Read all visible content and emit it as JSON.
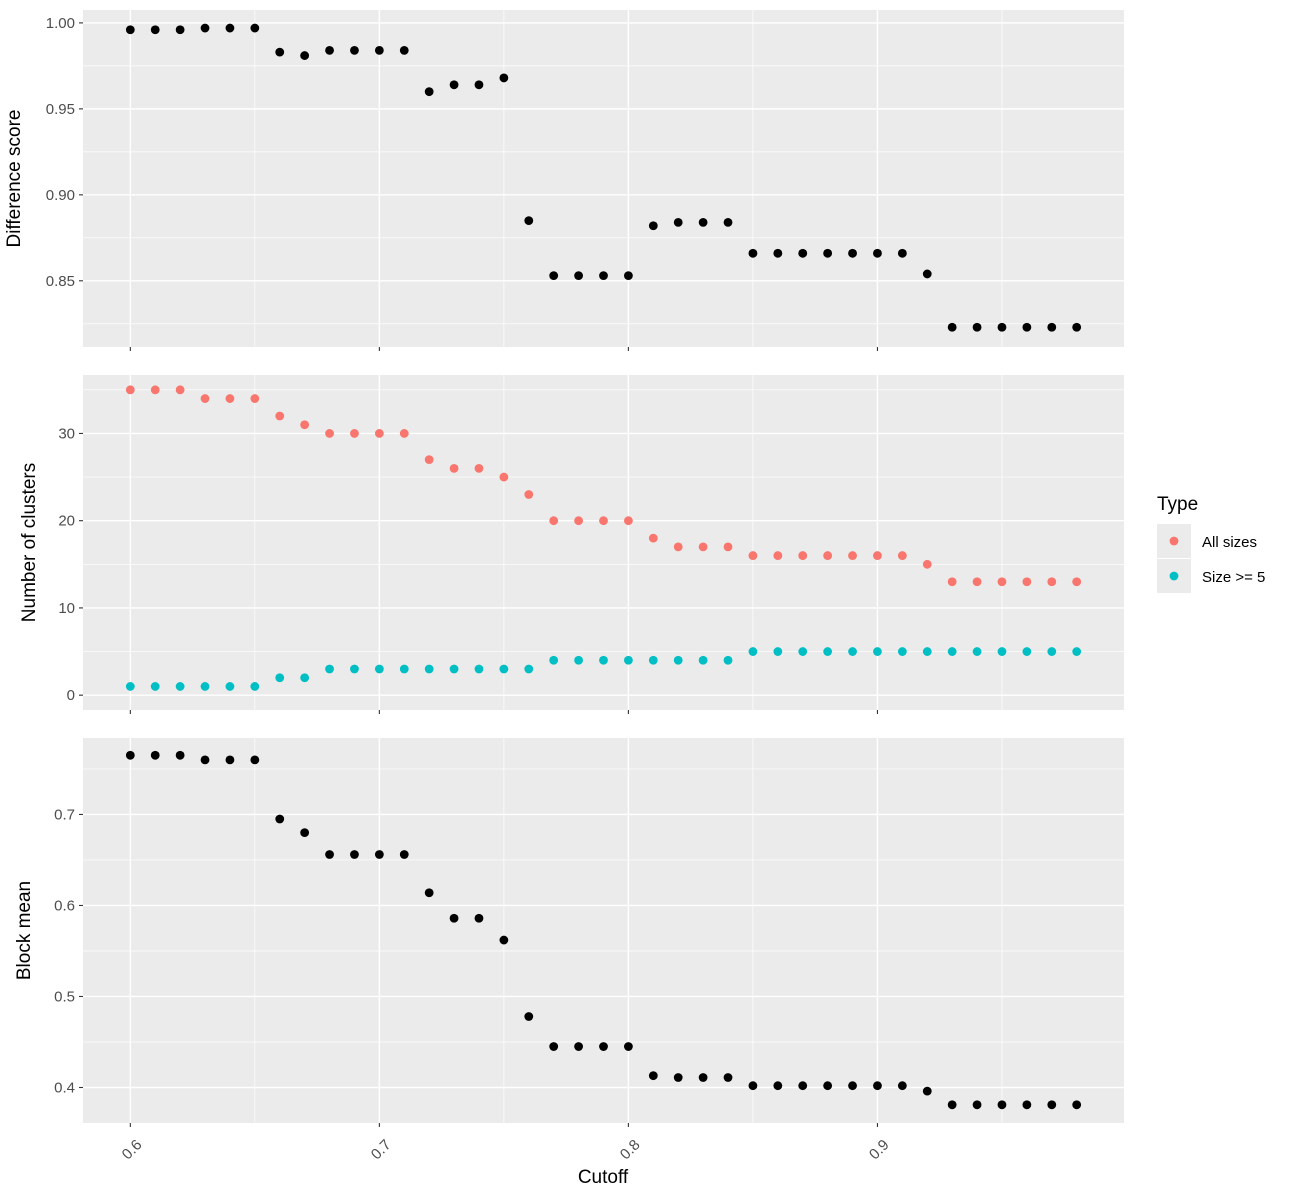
{
  "chart_data": {
    "type": "scatter",
    "x_label": "Cutoff",
    "x_range": [
      0.581,
      0.999
    ],
    "x_ticks": [
      "0.6",
      "0.7",
      "0.8",
      "0.9"
    ],
    "x": [
      0.6,
      0.61,
      0.62,
      0.63,
      0.64,
      0.65,
      0.66,
      0.67,
      0.68,
      0.69,
      0.7,
      0.71,
      0.72,
      0.73,
      0.74,
      0.75,
      0.76,
      0.77,
      0.78,
      0.79,
      0.8,
      0.81,
      0.82,
      0.83,
      0.84,
      0.85,
      0.86,
      0.87,
      0.88,
      0.89,
      0.9,
      0.91,
      0.92,
      0.93,
      0.94,
      0.95,
      0.96,
      0.97,
      0.98
    ],
    "grid": true,
    "facets": [
      {
        "ylabel": "Difference score",
        "ylim": [
          0.8115,
          1.0075
        ],
        "y_ticks": [
          "0.85",
          "0.90",
          "0.95",
          "1.00"
        ],
        "series": [
          {
            "color": "#000000",
            "values": [
              0.996,
              0.996,
              0.996,
              0.997,
              0.997,
              0.997,
              0.983,
              0.981,
              0.984,
              0.984,
              0.984,
              0.984,
              0.96,
              0.964,
              0.964,
              0.968,
              0.885,
              0.853,
              0.853,
              0.853,
              0.853,
              0.882,
              0.884,
              0.884,
              0.884,
              0.866,
              0.866,
              0.866,
              0.866,
              0.866,
              0.866,
              0.866,
              0.854,
              0.823,
              0.823,
              0.823,
              0.823,
              0.823,
              0.823
            ]
          }
        ]
      },
      {
        "ylabel": "Number of clusters",
        "ylim": [
          -1.7,
          36.7
        ],
        "y_ticks": [
          "0",
          "10",
          "20",
          "30"
        ],
        "series": [
          {
            "name": "All sizes",
            "color": "#F8766D",
            "values": [
              35,
              35,
              35,
              34,
              34,
              34,
              32,
              31,
              30,
              30,
              30,
              30,
              27,
              26,
              26,
              25,
              23,
              20,
              20,
              20,
              20,
              18,
              17,
              17,
              17,
              16,
              16,
              16,
              16,
              16,
              16,
              16,
              15,
              13,
              13,
              13,
              13,
              13,
              13
            ]
          },
          {
            "name": "Size >= 5",
            "color": "#00BFC4",
            "values": [
              1,
              1,
              1,
              1,
              1,
              1,
              2,
              2,
              3,
              3,
              3,
              3,
              3,
              3,
              3,
              3,
              3,
              4,
              4,
              4,
              4,
              4,
              4,
              4,
              4,
              5,
              5,
              5,
              5,
              5,
              5,
              5,
              5,
              5,
              5,
              5,
              5,
              5,
              5
            ]
          }
        ]
      },
      {
        "ylabel": "Block mean",
        "ylim": [
          0.361,
          0.784
        ],
        "y_ticks": [
          "0.4",
          "0.5",
          "0.6",
          "0.7"
        ],
        "series": [
          {
            "color": "#000000",
            "values": [
              0.765,
              0.765,
              0.765,
              0.76,
              0.76,
              0.76,
              0.695,
              0.68,
              0.656,
              0.656,
              0.656,
              0.656,
              0.614,
              0.586,
              0.586,
              0.562,
              0.478,
              0.445,
              0.445,
              0.445,
              0.445,
              0.413,
              0.411,
              0.411,
              0.411,
              0.402,
              0.402,
              0.402,
              0.402,
              0.402,
              0.402,
              0.402,
              0.396,
              0.381,
              0.381,
              0.381,
              0.381,
              0.381,
              0.381
            ]
          }
        ]
      }
    ],
    "legend": {
      "title": "Type",
      "position": "right",
      "entries": [
        {
          "label": "All sizes",
          "color": "#F8766D"
        },
        {
          "label": "Size >= 5",
          "color": "#00BFC4"
        }
      ]
    }
  }
}
